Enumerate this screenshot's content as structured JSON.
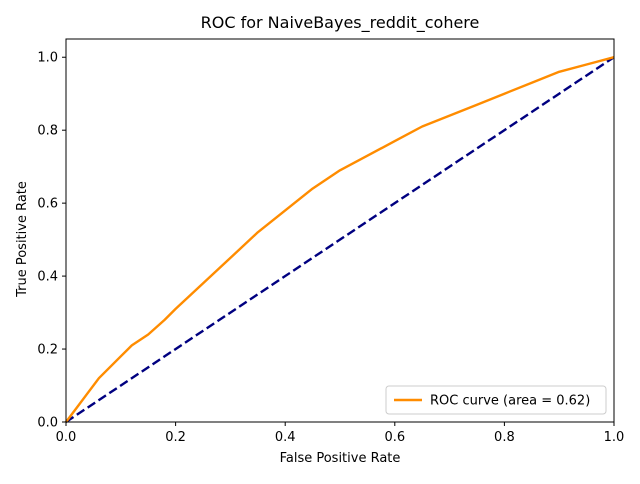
{
  "chart_data": {
    "type": "line",
    "title": "ROC for NaiveBayes_reddit_cohere",
    "xlabel": "False Positive Rate",
    "ylabel": "True Positive Rate",
    "xlim": [
      0.0,
      1.0
    ],
    "ylim": [
      0.0,
      1.05
    ],
    "x_ticks": [
      "0.0",
      "0.2",
      "0.4",
      "0.6",
      "0.8",
      "1.0"
    ],
    "y_ticks": [
      "0.0",
      "0.2",
      "0.4",
      "0.6",
      "0.8",
      "1.0"
    ],
    "grid": false,
    "legend_position": "lower right",
    "series": [
      {
        "name": "ROC curve (area = 0.62)",
        "color": "#ff8c00",
        "style": "solid",
        "x": [
          0.0,
          0.02,
          0.04,
          0.06,
          0.08,
          0.1,
          0.12,
          0.15,
          0.18,
          0.2,
          0.25,
          0.3,
          0.35,
          0.4,
          0.45,
          0.5,
          0.55,
          0.6,
          0.65,
          0.7,
          0.75,
          0.8,
          0.85,
          0.9,
          0.95,
          1.0
        ],
        "y": [
          0.0,
          0.04,
          0.08,
          0.12,
          0.15,
          0.18,
          0.21,
          0.24,
          0.28,
          0.31,
          0.38,
          0.45,
          0.52,
          0.58,
          0.64,
          0.69,
          0.73,
          0.77,
          0.81,
          0.84,
          0.87,
          0.9,
          0.93,
          0.96,
          0.98,
          1.0
        ]
      },
      {
        "color": "#000080",
        "style": "dashed",
        "x": [
          0.0,
          1.0
        ],
        "y": [
          0.0,
          1.0
        ]
      }
    ]
  }
}
